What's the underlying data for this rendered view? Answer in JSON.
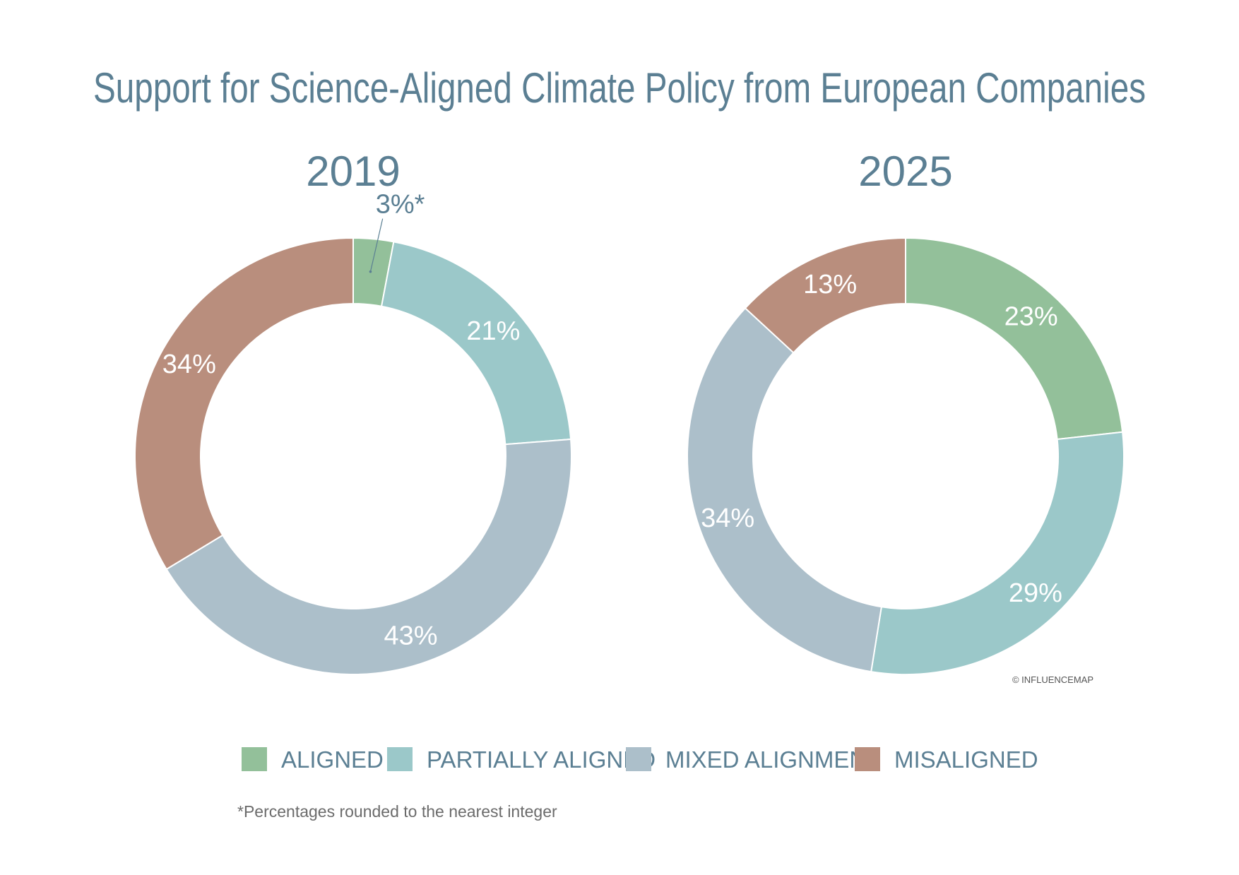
{
  "title": "Support for Science-Aligned Climate Policy from European Companies",
  "colors": {
    "text": "#5b7f93",
    "aligned": "#93c09a",
    "partially_aligned": "#9bc8c9",
    "mixed_alignment": "#acbfca",
    "misaligned": "#b98e7d"
  },
  "legend": [
    {
      "label": "ALIGNED",
      "color": "#93c09a"
    },
    {
      "label": "PARTIALLY ALIGNED",
      "color": "#9bc8c9"
    },
    {
      "label": "MIXED ALIGNMENT",
      "color": "#acbfca"
    },
    {
      "label": "MISALIGNED",
      "color": "#b98e7d"
    }
  ],
  "footnote": "*Percentages rounded to the nearest integer",
  "copyright": "© INFLUENCEMAP",
  "chart_data": [
    {
      "type": "pie",
      "title": "2019",
      "categories": [
        "ALIGNED",
        "PARTIALLY ALIGNED",
        "MIXED ALIGNMENT",
        "MISALIGNED"
      ],
      "values": [
        3,
        21,
        43,
        34
      ],
      "labels": [
        "3%*",
        "21%",
        "43%",
        "34%"
      ]
    },
    {
      "type": "pie",
      "title": "2025",
      "categories": [
        "ALIGNED",
        "PARTIALLY ALIGNED",
        "MIXED ALIGNMENT",
        "MISALIGNED"
      ],
      "values": [
        23,
        29,
        34,
        13
      ],
      "labels": [
        "23%",
        "29%",
        "34%",
        "13%"
      ]
    }
  ]
}
